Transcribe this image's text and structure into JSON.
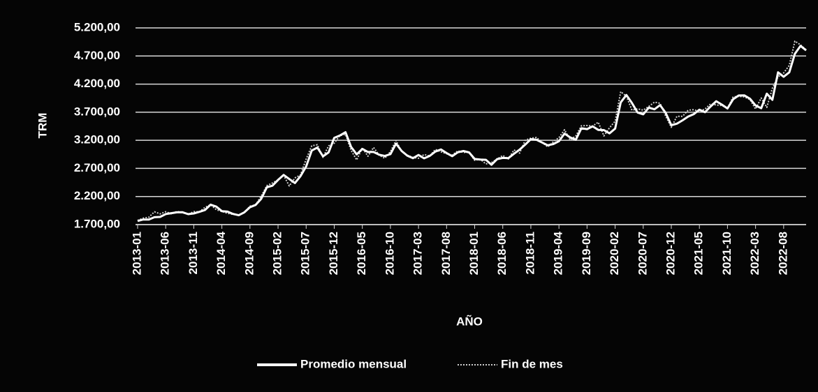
{
  "chart_data": {
    "type": "line",
    "ylabel": "TRM",
    "xlabel": "AÑO",
    "categories": [
      "2013-01",
      null,
      null,
      null,
      null,
      "2013-06",
      null,
      null,
      null,
      null,
      "2013-11",
      null,
      null,
      null,
      null,
      "2014-04",
      null,
      null,
      null,
      null,
      "2014-09",
      null,
      null,
      null,
      null,
      "2015-02",
      null,
      null,
      null,
      null,
      "2015-07",
      null,
      null,
      null,
      null,
      "2015-12",
      null,
      null,
      null,
      null,
      "2016-05",
      null,
      null,
      null,
      null,
      "2016-10",
      null,
      null,
      null,
      null,
      "2017-03",
      null,
      null,
      null,
      null,
      "2017-08",
      null,
      null,
      null,
      null,
      "2018-01",
      null,
      null,
      null,
      null,
      "2018-06",
      null,
      null,
      null,
      null,
      "2018-11",
      null,
      null,
      null,
      null,
      "2019-04",
      null,
      null,
      null,
      null,
      "2019-09",
      null,
      null,
      null,
      null,
      "2020-02",
      null,
      null,
      null,
      null,
      "2020-07",
      null,
      null,
      null,
      null,
      "2020-12",
      null,
      null,
      null,
      null,
      "2021-05",
      null,
      null,
      null,
      null,
      "2021-10",
      null,
      null,
      null,
      null,
      "2022-03",
      null,
      null,
      null,
      null,
      "2022-08",
      null,
      null,
      null,
      null
    ],
    "series": [
      {
        "name": "Promedio mensual",
        "color": "#ffffff",
        "dash": "solid",
        "values": [
          1765,
          1791,
          1791,
          1831,
          1836,
          1888,
          1904,
          1919,
          1920,
          1886,
          1899,
          1927,
          1960,
          2055,
          2020,
          1940,
          1931,
          1890,
          1866,
          1919,
          2009,
          2050,
          2158,
          2364,
          2392,
          2495,
          2584,
          2511,
          2440,
          2562,
          2735,
          3018,
          3070,
          2915,
          2985,
          3244,
          3285,
          3345,
          3083,
          2950,
          3047,
          2992,
          2992,
          2944,
          2921,
          2954,
          3141,
          3009,
          2927,
          2881,
          2939,
          2879,
          2923,
          3000,
          3037,
          2973,
          2918,
          2987,
          3010,
          2985,
          2868,
          2858,
          2853,
          2765,
          2865,
          2886,
          2883,
          2961,
          3034,
          3124,
          3220,
          3209,
          3161,
          3111,
          3133,
          3185,
          3320,
          3252,
          3210,
          3414,
          3399,
          3449,
          3386,
          3382,
          3324,
          3408,
          3874,
          4006,
          3863,
          3694,
          3662,
          3782,
          3751,
          3826,
          3688,
          3469,
          3496,
          3555,
          3622,
          3666,
          3744,
          3700,
          3803,
          3895,
          3835,
          3767,
          3930,
          3997,
          4000,
          3940,
          3820,
          3770,
          4030,
          3920,
          4410,
          4330,
          4410,
          4740,
          4880,
          4800
        ]
      },
      {
        "name": "Fin de mes",
        "color": "#cfcfcf",
        "dash": "dotted",
        "values": [
          1773,
          1816,
          1832,
          1928,
          1891,
          1929,
          1891,
          1935,
          1914,
          1884,
          1931,
          1927,
          2008,
          2054,
          1965,
          1935,
          1900,
          1881,
          1872,
          1918,
          2028,
          2050,
          2206,
          2392,
          2441,
          2496,
          2576,
          2388,
          2530,
          2585,
          2866,
          3101,
          3121,
          2897,
          3101,
          3149,
          3284,
          3306,
          3022,
          2851,
          3067,
          2916,
          3074,
          2935,
          2880,
          2999,
          3196,
          3000,
          2936,
          2896,
          2880,
          2947,
          2921,
          3038,
          2995,
          2961,
          2937,
          3012,
          2985,
          2984,
          2844,
          2863,
          2780,
          2804,
          2866,
          2930,
          2868,
          3028,
          2972,
          3202,
          3236,
          3250,
          3164,
          3082,
          3174,
          3248,
          3388,
          3206,
          3279,
          3458,
          3462,
          3453,
          3522,
          3277,
          3423,
          3539,
          4065,
          3984,
          3736,
          3759,
          3737,
          3802,
          3879,
          3858,
          3632,
          3432,
          3626,
          3627,
          3736,
          3746,
          3711,
          3757,
          3848,
          3828,
          3818,
          3769,
          3971,
          3981,
          3973,
          3925,
          3756,
          3953,
          3785,
          4127,
          4329,
          4398,
          4532,
          4964,
          4899,
          4810
        ]
      }
    ],
    "ylim": [
      1700,
      5200
    ],
    "yticks": [
      {
        "value": 1700,
        "label": "1.700,00"
      },
      {
        "value": 2200,
        "label": "2.200,00"
      },
      {
        "value": 2700,
        "label": "2.700,00"
      },
      {
        "value": 3200,
        "label": "3.200,00"
      },
      {
        "value": 3700,
        "label": "3.700,00"
      },
      {
        "value": 4200,
        "label": "4.200,00"
      },
      {
        "value": 4700,
        "label": "4.700,00"
      },
      {
        "value": 5200,
        "label": "5.200,00"
      }
    ],
    "grid": true,
    "legend": "bottom"
  }
}
